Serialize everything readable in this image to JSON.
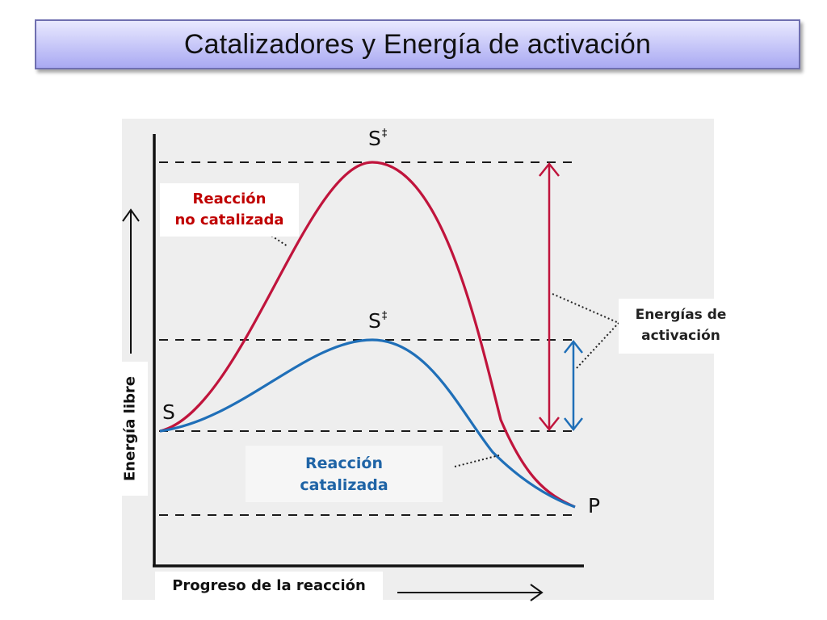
{
  "title": "Catalizadores y Energía de activación",
  "labels": {
    "uncatalyzed_line1": "Reacción",
    "uncatalyzed_line2": "no catalizada",
    "catalyzed_line1": "Reacción",
    "catalyzed_line2": "catalizada",
    "activation_line1": "Energías de",
    "activation_line2": "activación",
    "x_axis": "Progreso de la reacción",
    "y_axis": "Energía libre"
  },
  "points": {
    "transition_state_uncatalyzed": "S",
    "transition_state_catalyzed": "S",
    "transition_mark": "‡",
    "substrate": "S",
    "product": "P"
  },
  "colors": {
    "uncatalyzed": "#c0143c",
    "catalyzed": "#1f6fb8",
    "title_bg_top": "#e9e9ff",
    "title_bg_bottom": "#a9a9f2",
    "panel_bg": "#eeeeee"
  }
}
